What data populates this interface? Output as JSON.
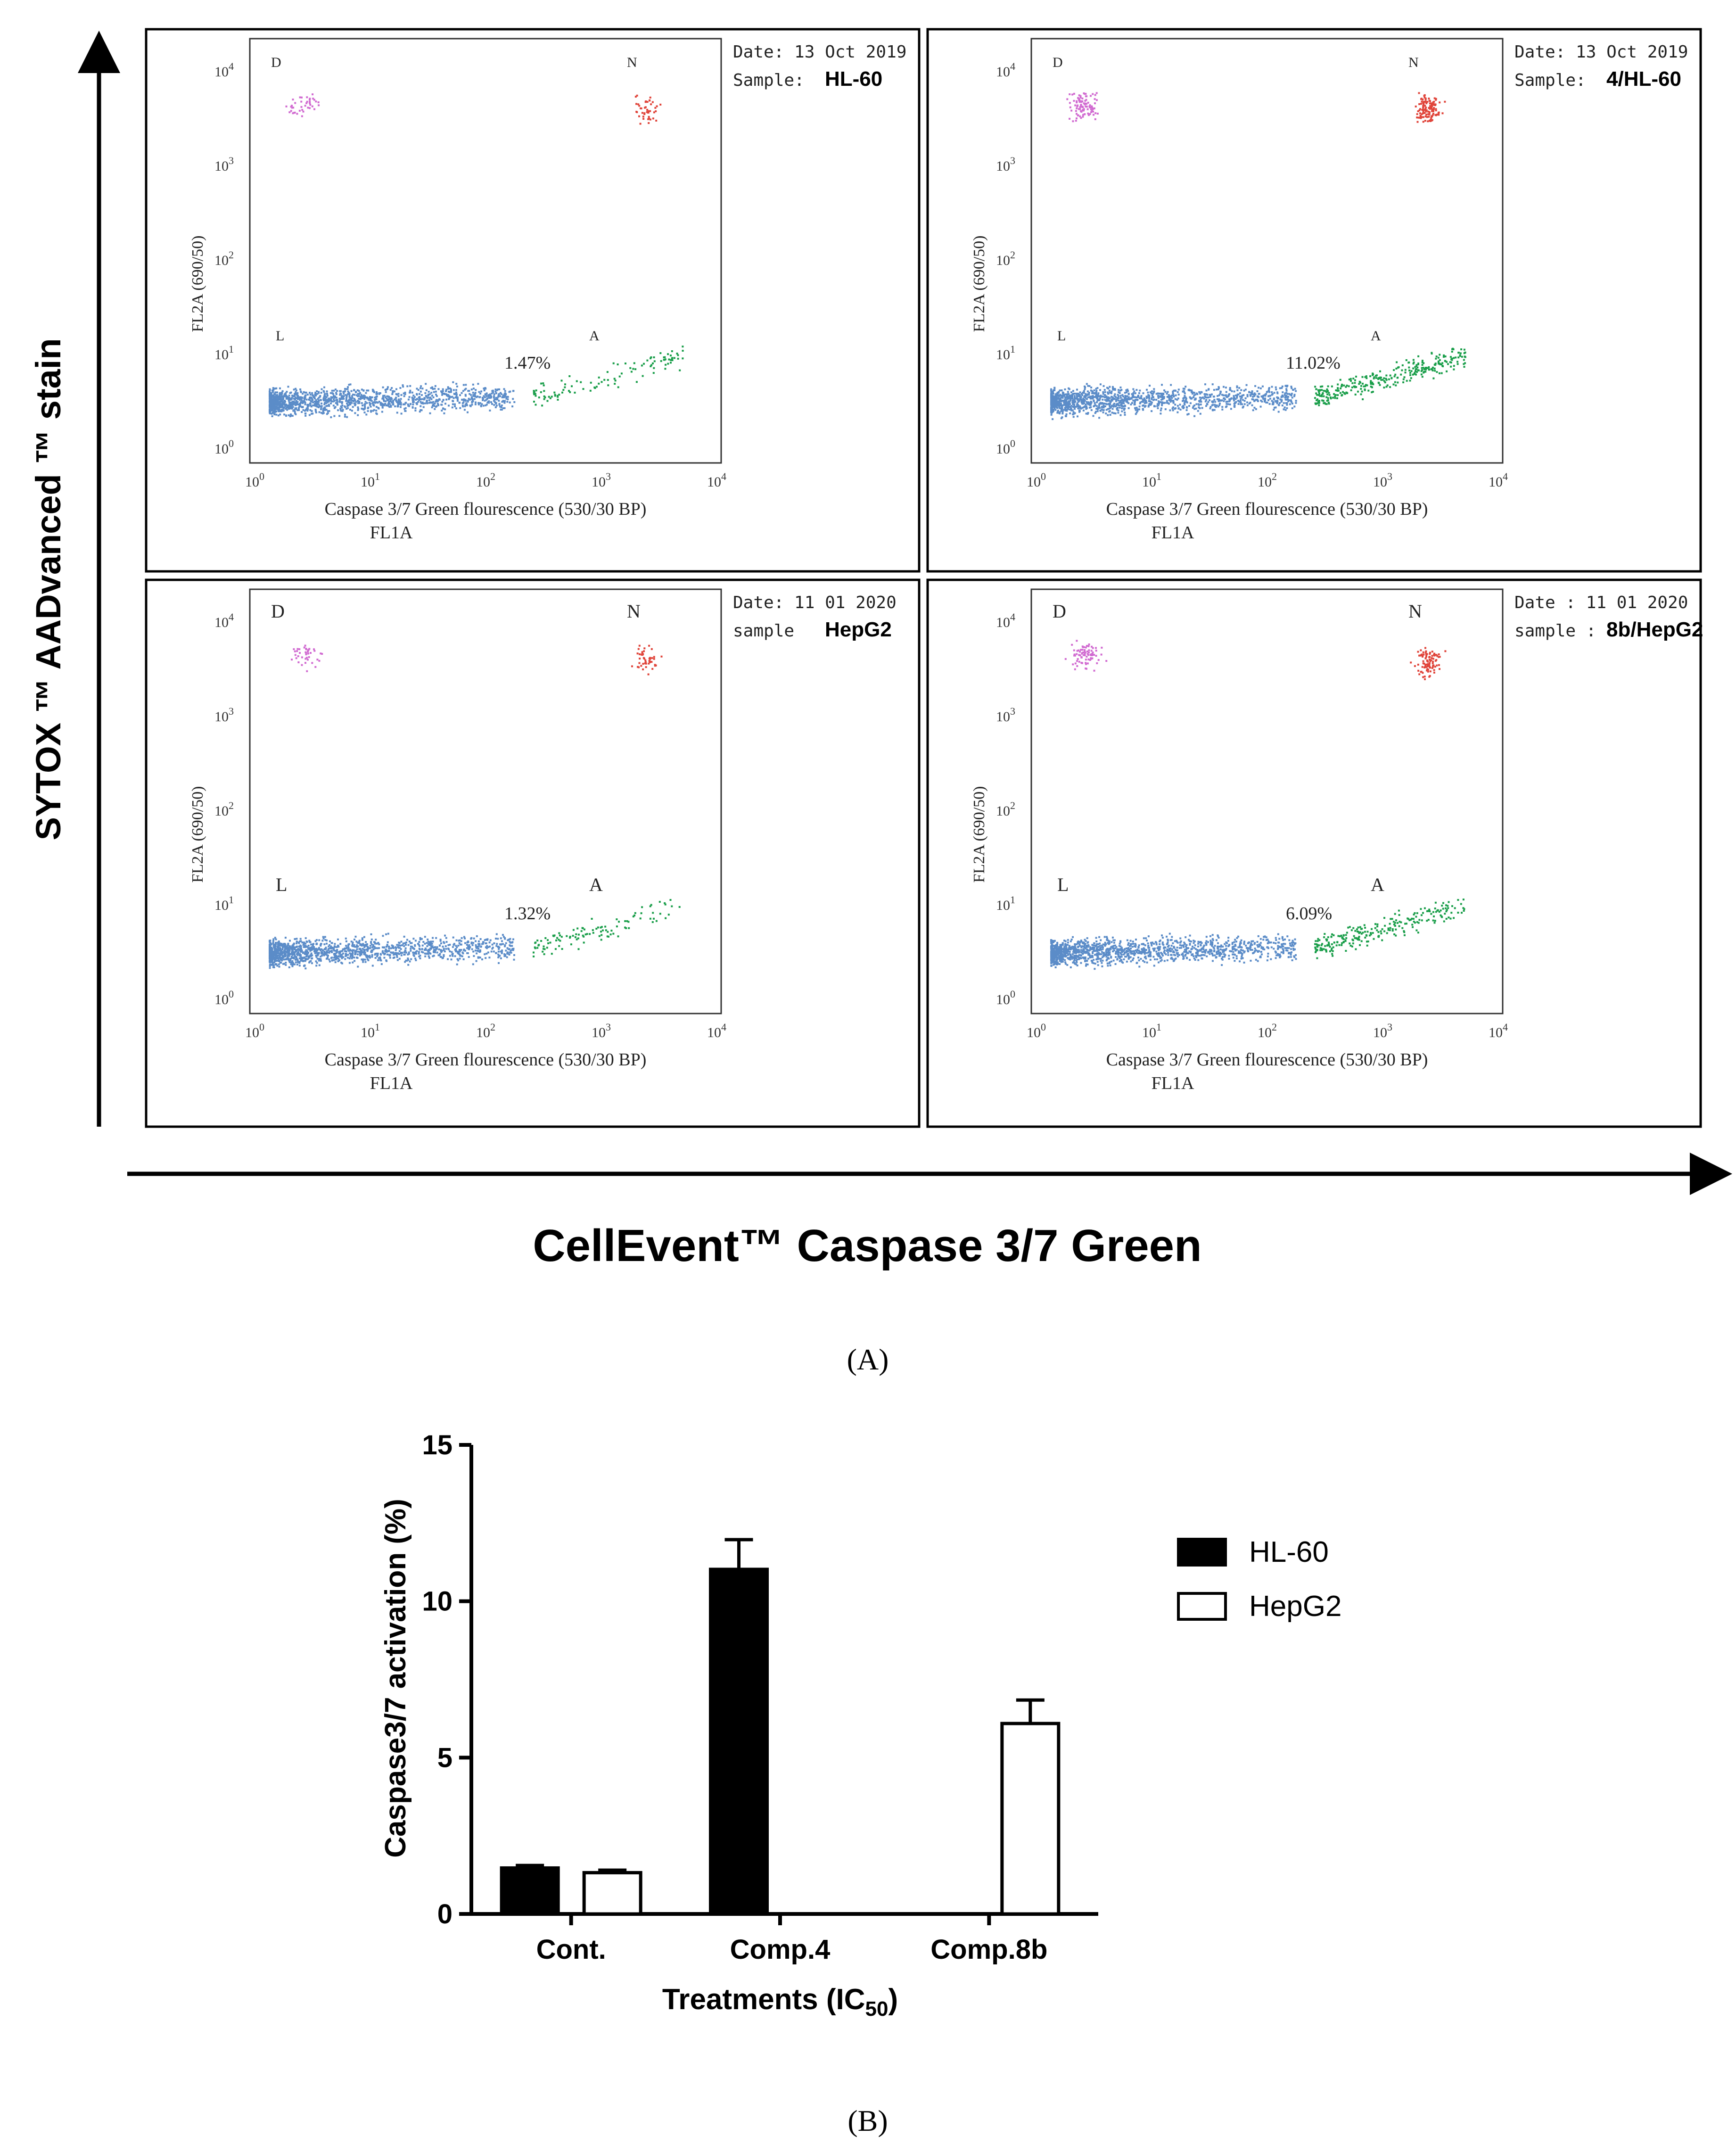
{
  "figure": {
    "y_axis_label": "SYTOX ™ AADvanced ™ stain",
    "x_axis_label": "CellEvent™ Caspase 3/7 Green",
    "panel_a_label": "(A)",
    "panel_b_label": "(B)"
  },
  "flow_panels": [
    {
      "date_label": "Date: 13 Oct 2019",
      "sample_label": "Sample:",
      "sample_value": "HL-60",
      "percent": "1.47%",
      "quadrants": {
        "d": "D",
        "n": "N",
        "l": "L",
        "a": "A"
      },
      "axis_y": "FL2A (690/50)",
      "axis_x": "Caspase 3/7 Green flourescence (530/30 BP)",
      "axis_x2": "FL1A",
      "ticks": [
        "0",
        "1",
        "2",
        "3",
        "4"
      ],
      "tick_base": "10",
      "level": 1
    },
    {
      "date_label": "Date: 13 Oct 2019",
      "sample_label": "Sample:",
      "sample_value": "4/HL-60",
      "percent": "11.02%",
      "quadrants": {
        "d": "D",
        "n": "N",
        "l": "L",
        "a": "A"
      },
      "axis_y": "FL2A (690/50)",
      "axis_x": "Caspase 3/7 Green flourescence (530/30 BP)",
      "axis_x2": "FL1A",
      "ticks": [
        "0",
        "1",
        "2",
        "3",
        "4"
      ],
      "tick_base": "10",
      "level": 4
    },
    {
      "date_label": "Date: 11 01 2020",
      "sample_label": "sample",
      "sample_value": "HepG2",
      "percent": "1.32%",
      "quadrants": {
        "d": "D",
        "n": "N",
        "l": "L",
        "a": "A"
      },
      "axis_y": "FL2A (690/50)",
      "axis_x": "Caspase 3/7 Green flourescence (530/30 BP)",
      "axis_x2": "FL1A",
      "ticks": [
        "0",
        "1",
        "2",
        "3",
        "4"
      ],
      "tick_base": "10",
      "level": 1
    },
    {
      "date_label": "Date :  11 01 2020",
      "sample_label": "sample :",
      "sample_value": "8b/HepG2",
      "percent": "6.09%",
      "quadrants": {
        "d": "D",
        "n": "N",
        "l": "L",
        "a": "A"
      },
      "axis_y": "FL2A (690/50)",
      "axis_x": "Caspase 3/7 Green flourescence (530/30 BP)",
      "axis_x2": "FL1A",
      "ticks": [
        "0",
        "1",
        "2",
        "3",
        "4"
      ],
      "tick_base": "10",
      "level": 3
    }
  ],
  "chart_data": {
    "type": "bar",
    "categories": [
      "Cont.",
      "Comp.4",
      "Comp.8b"
    ],
    "series": [
      {
        "name": "HL-60",
        "values": [
          1.47,
          11.02,
          null
        ],
        "errors": [
          0.08,
          0.95,
          null
        ],
        "fill": "#000000"
      },
      {
        "name": "HepG2",
        "values": [
          1.32,
          null,
          6.09
        ],
        "errors": [
          0.08,
          null,
          0.75
        ],
        "fill": "#ffffff"
      }
    ],
    "ylabel": "Caspase3/7 activation (%)",
    "xlabel_main": "Treatments (IC",
    "xlabel_sub": "50",
    "xlabel_end": ")",
    "ylim": [
      0,
      15
    ],
    "yticks": [
      0,
      5,
      10,
      15
    ],
    "legend_position": "top-right"
  }
}
